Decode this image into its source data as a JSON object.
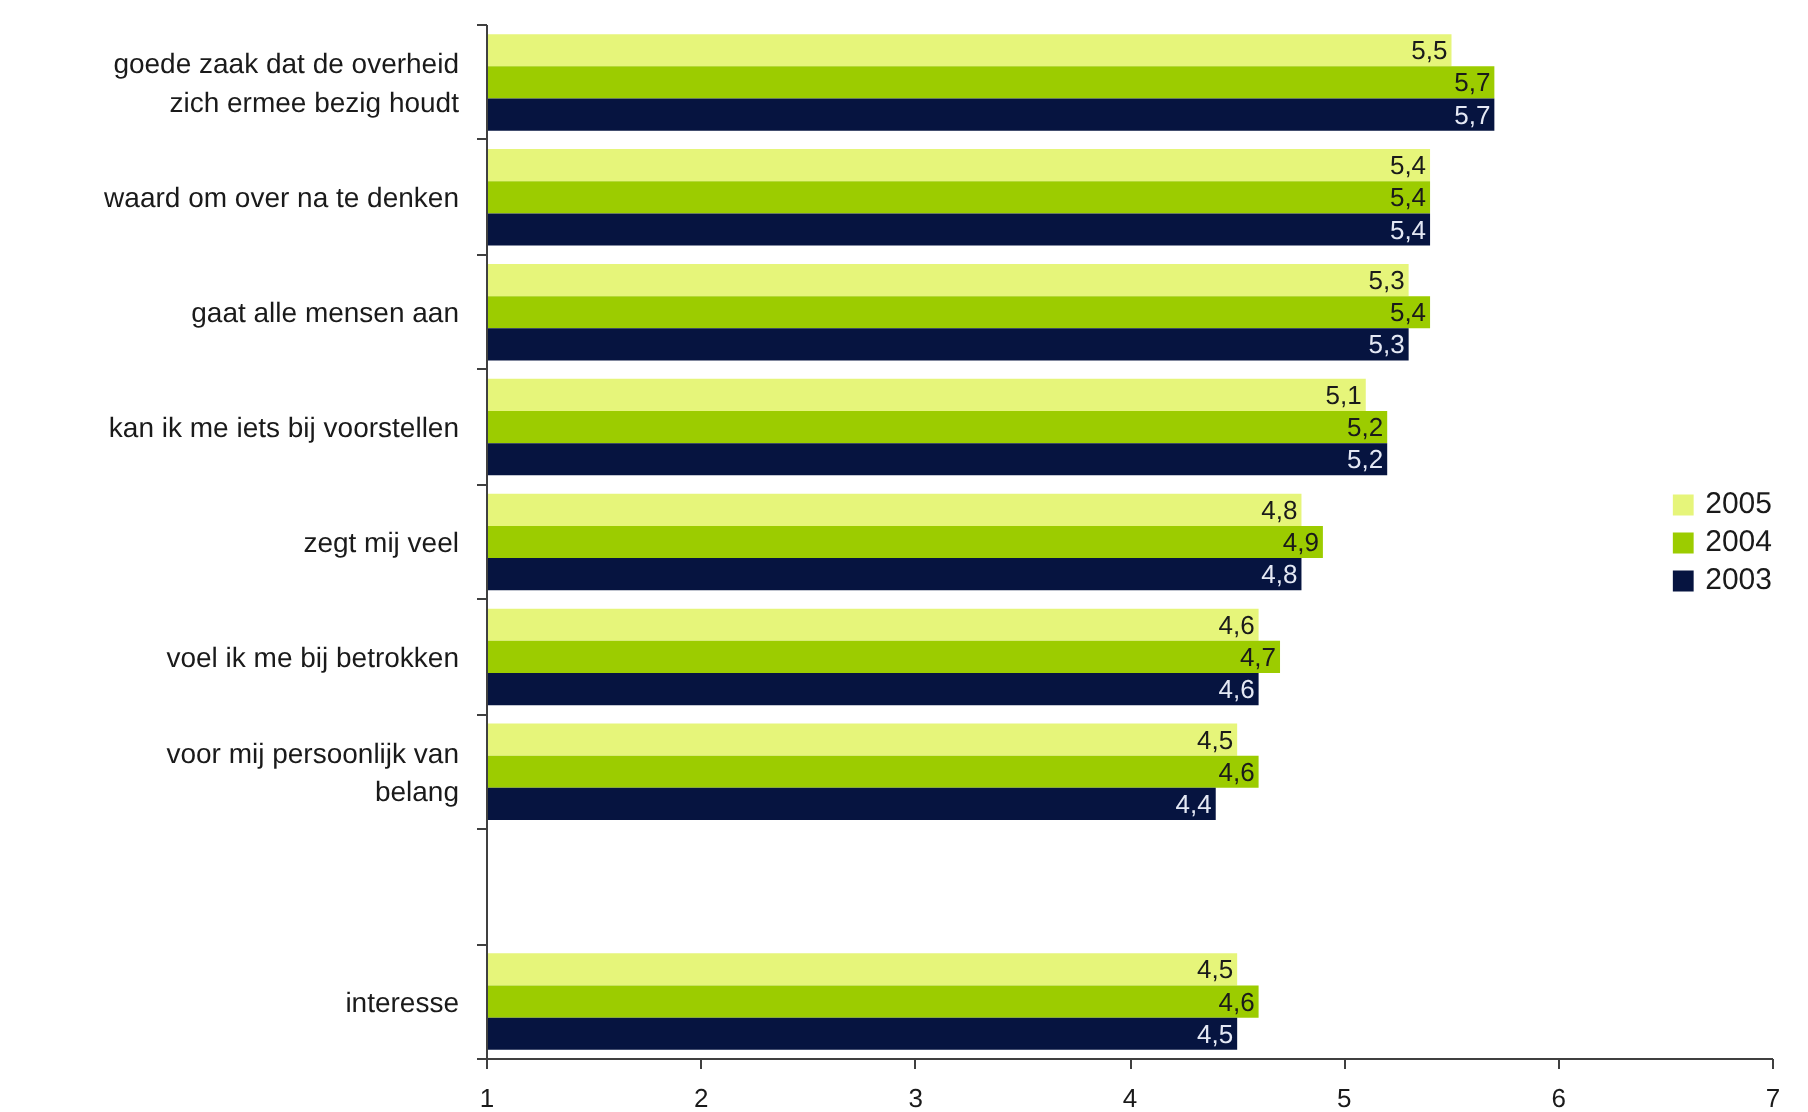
{
  "chart_data": {
    "type": "bar",
    "orientation": "horizontal",
    "categories": [
      "goede zaak dat de overheid\nzich ermee bezig houdt",
      "waard om over na te denken",
      "gaat alle mensen aan",
      "kan ik me iets bij voorstellen",
      "zegt mij veel",
      "voel ik me bij betrokken",
      "voor mij persoonlijk van\nbelang",
      null,
      "interesse"
    ],
    "series": [
      {
        "name": "2005",
        "color": "#e6f57a",
        "values": [
          5.5,
          5.4,
          5.3,
          5.1,
          4.8,
          4.6,
          4.5,
          null,
          4.5
        ],
        "value_labels": [
          "5,5",
          "5,4",
          "5,3",
          "5,1",
          "4,8",
          "4,6",
          "4,5",
          null,
          "4,5"
        ]
      },
      {
        "name": "2004",
        "color": "#9ccc00",
        "values": [
          5.7,
          5.4,
          5.4,
          5.2,
          4.9,
          4.7,
          4.6,
          null,
          4.6
        ],
        "value_labels": [
          "5,7",
          "5,4",
          "5,4",
          "5,2",
          "4,9",
          "4,7",
          "4,6",
          null,
          "4,6"
        ]
      },
      {
        "name": "2003",
        "color": "#061440",
        "values": [
          5.7,
          5.4,
          5.3,
          5.2,
          4.8,
          4.6,
          4.4,
          null,
          4.5
        ],
        "value_labels": [
          "5,7",
          "5,4",
          "5,3",
          "5,2",
          "4,8",
          "4,6",
          "4,4",
          null,
          "4,5"
        ]
      }
    ],
    "xlim": [
      1,
      7
    ],
    "xticks": [
      1,
      2,
      3,
      4,
      5,
      6,
      7
    ],
    "legend": "right",
    "grid": false
  }
}
